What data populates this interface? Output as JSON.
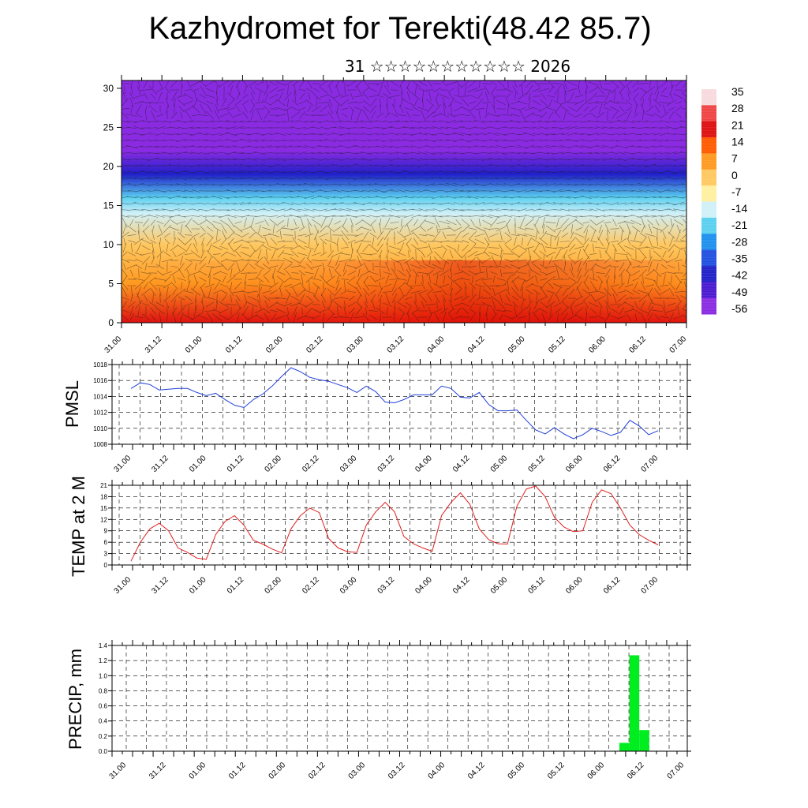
{
  "title": "Kazhydromet for Terekti(48.42 85.7)",
  "subtitle": "31 ☆☆☆☆☆☆☆☆☆☆☆ 2026",
  "chart_data": [
    {
      "type": "heatmap",
      "name": "cross-section",
      "ylim": [
        0,
        31
      ],
      "yticks": [
        0,
        5,
        10,
        15,
        20,
        25,
        30
      ],
      "x_ticklabels": [
        "31.00",
        "31.12",
        "01.00",
        "01.12",
        "02.00",
        "02.12",
        "03.00",
        "03.12",
        "04.00",
        "04.12",
        "05.00",
        "05.12",
        "06.00",
        "06.12",
        "07.00"
      ],
      "colorbar": {
        "labels": [
          "35",
          "28",
          "21",
          "14",
          "7",
          "0",
          "-7",
          "-14",
          "-21",
          "-28",
          "-35",
          "-42",
          "-49",
          "-56"
        ],
        "colors": [
          "#f7dadd",
          "#ef4444",
          "#dd1010",
          "#ff5a00",
          "#ff9a20",
          "#ffc860",
          "#fff0a0",
          "#d0f0f8",
          "#5ad0f0",
          "#1e90ee",
          "#2050e0",
          "#2020c8",
          "#4a1ad0",
          "#8a2be2"
        ]
      },
      "layers": [
        {
          "height": 0,
          "temperature": 24
        },
        {
          "height": 5,
          "temperature": 12
        },
        {
          "height": 10,
          "temperature": 4
        },
        {
          "height": 14,
          "temperature": -8
        },
        {
          "height": 16,
          "temperature": -20
        },
        {
          "height": 19,
          "temperature": -42
        },
        {
          "height": 22,
          "temperature": -58
        },
        {
          "height": 31,
          "temperature": -52
        }
      ]
    },
    {
      "type": "line",
      "name": "pmsl",
      "ylabel": "PMSL",
      "ylim": [
        1008,
        1018
      ],
      "yticks": [
        1008,
        1010,
        1012,
        1014,
        1016,
        1018
      ],
      "color": "#1f3fd8",
      "x_ticklabels": [
        "31.00",
        "31.12",
        "01.00",
        "01.12",
        "02.00",
        "02.12",
        "03.00",
        "03.12",
        "04.00",
        "04.12",
        "05.00",
        "05.12",
        "06.00",
        "06.12",
        "07.00"
      ],
      "values": [
        1015.0,
        1015.7,
        1015.5,
        1014.8,
        1014.9,
        1015.0,
        1015.0,
        1014.5,
        1014.1,
        1014.4,
        1013.6,
        1012.9,
        1012.6,
        1013.6,
        1014.3,
        1015.3,
        1016.5,
        1017.6,
        1017.1,
        1016.4,
        1016.1,
        1015.9,
        1015.5,
        1015.1,
        1014.5,
        1015.3,
        1014.6,
        1013.3,
        1013.2,
        1013.6,
        1014.2,
        1014.2,
        1014.2,
        1015.3,
        1015.0,
        1013.9,
        1013.8,
        1014.5,
        1013.0,
        1012.2,
        1012.2,
        1012.3,
        1011.0,
        1009.8,
        1009.3,
        1010.1,
        1009.3,
        1008.7,
        1009.2,
        1010.0,
        1009.6,
        1009.1,
        1009.5,
        1011.0,
        1010.3,
        1009.2,
        1009.7
      ]
    },
    {
      "type": "line",
      "name": "temp",
      "ylabel": "TEMP at 2 M",
      "ylim": [
        0,
        21
      ],
      "yticks": [
        0,
        3,
        6,
        9,
        12,
        15,
        18,
        21
      ],
      "color": "#e02020",
      "x_ticklabels": [
        "31.00",
        "31.12",
        "01.00",
        "01.12",
        "02.00",
        "02.12",
        "03.00",
        "03.12",
        "04.00",
        "04.12",
        "05.00",
        "05.12",
        "06.00",
        "06.12",
        "07.00"
      ],
      "values": [
        1.0,
        6.0,
        9.5,
        11.0,
        9.0,
        4.5,
        3.3,
        1.8,
        1.5,
        8.0,
        11.5,
        13.0,
        10.5,
        6.5,
        5.5,
        4.2,
        3.2,
        9.5,
        13.0,
        15.0,
        13.8,
        7.0,
        4.5,
        3.5,
        3.3,
        10.5,
        14.0,
        16.5,
        14.0,
        7.5,
        5.6,
        4.5,
        3.6,
        13.0,
        16.5,
        19.0,
        16.0,
        9.5,
        6.7,
        5.6,
        5.5,
        15.5,
        20.0,
        20.8,
        18.0,
        12.5,
        10.0,
        8.8,
        9.0,
        16.5,
        19.8,
        18.8,
        15.0,
        10.5,
        8.0,
        6.5,
        5.3
      ]
    },
    {
      "type": "bar",
      "name": "precip",
      "ylabel": "PRECIP, mm",
      "ylim": [
        0,
        1.4
      ],
      "yticks": [
        0.0,
        0.2,
        0.4,
        0.6,
        0.8,
        1.0,
        1.2,
        1.4
      ],
      "ytick_labels": [
        "0.0",
        "0.2",
        "0.4",
        "0.6",
        "0.8",
        "1.0",
        "1.2",
        "1.4"
      ],
      "color": "#00ee20",
      "x_ticklabels": [
        "31.00",
        "31.12",
        "01.00",
        "01.12",
        "02.00",
        "02.12",
        "03.00",
        "03.12",
        "04.00",
        "04.12",
        "05.00",
        "05.12",
        "06.00",
        "06.12",
        "07.00"
      ],
      "bars": [
        {
          "hour": 150,
          "value": 0.11
        },
        {
          "hour": 153,
          "value": 1.27
        },
        {
          "hour": 156,
          "value": 0.28
        }
      ]
    }
  ]
}
